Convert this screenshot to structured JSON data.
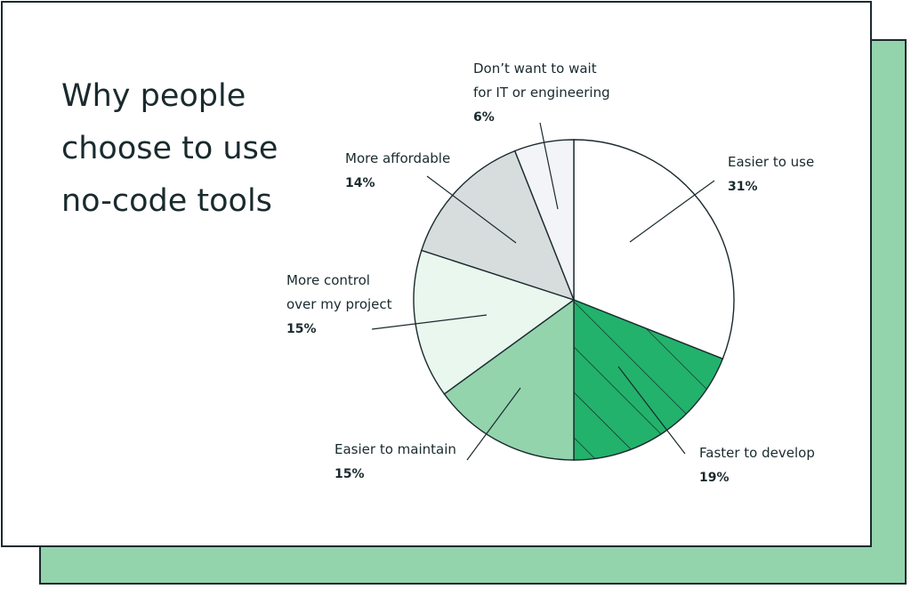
{
  "title_lines": [
    "Why people",
    "choose to use",
    "no-code tools"
  ],
  "colors": {
    "background_card": "#93d4ad",
    "outline": "#1a2a2e",
    "text": "#1a2a2e"
  },
  "chart_data": {
    "type": "pie",
    "title": "Why people choose to use no-code tools",
    "start": "12 o'clock, clockwise",
    "slices": [
      {
        "label_lines": [
          "Easier to use"
        ],
        "value": 31,
        "value_label": "31%",
        "color": "#ffffff",
        "hatched": false
      },
      {
        "label_lines": [
          "Faster to develop"
        ],
        "value": 19,
        "value_label": "19%",
        "color": "#22b26b",
        "hatched": true
      },
      {
        "label_lines": [
          "Easier to maintain"
        ],
        "value": 15,
        "value_label": "15%",
        "color": "#93d4ad",
        "hatched": false
      },
      {
        "label_lines": [
          "More control",
          "over my project"
        ],
        "value": 15,
        "value_label": "15%",
        "color": "#e9f7ee",
        "hatched": false
      },
      {
        "label_lines": [
          "More affordable"
        ],
        "value": 14,
        "value_label": "14%",
        "color": "#d7dcdd",
        "hatched": false
      },
      {
        "label_lines": [
          "Don’t want to wait",
          "for IT or engineering"
        ],
        "value": 6,
        "value_label": "6%",
        "color": "#f3f4f8",
        "hatched": false
      }
    ]
  }
}
